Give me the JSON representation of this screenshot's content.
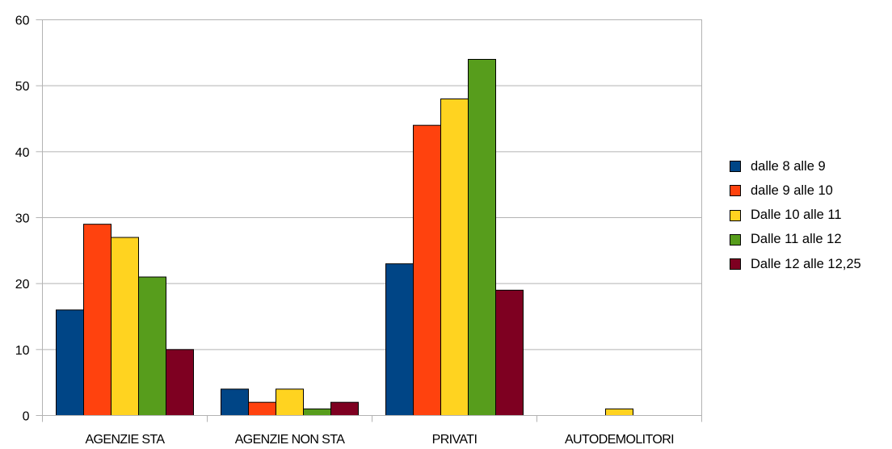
{
  "chart_data": {
    "type": "bar",
    "categories": [
      "AGENZIE STA",
      "AGENZIE NON STA",
      "PRIVATI",
      "AUTODEMOLITORI"
    ],
    "series": [
      {
        "name": "dalle 8 alle 9",
        "color": "#004586",
        "values": [
          16,
          4,
          23,
          0
        ]
      },
      {
        "name": "dalle 9 alle 10",
        "color": "#ff420e",
        "values": [
          29,
          2,
          44,
          0
        ]
      },
      {
        "name": "Dalle 10 alle 11",
        "color": "#ffd320",
        "values": [
          27,
          4,
          48,
          1
        ]
      },
      {
        "name": "Dalle 11 alle 12",
        "color": "#579d1c",
        "values": [
          21,
          1,
          54,
          0
        ]
      },
      {
        "name": "Dalle 12 alle 12,25",
        "color": "#7e0021",
        "values": [
          10,
          2,
          19,
          0
        ]
      }
    ],
    "ylim": [
      0,
      60
    ],
    "yticks": [
      "0",
      "10",
      "20",
      "30",
      "40",
      "50",
      "60"
    ],
    "grid": true,
    "legend_position": "right",
    "title": "",
    "xlabel": "",
    "ylabel": ""
  }
}
